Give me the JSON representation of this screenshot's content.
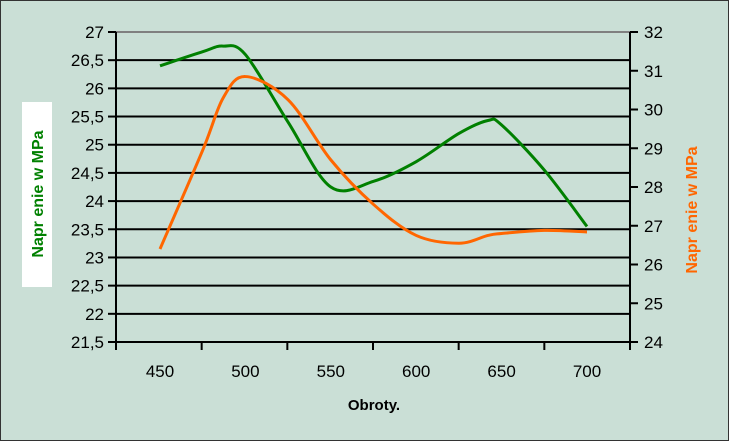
{
  "chart_data": {
    "type": "line",
    "xlabel": "Obroty.",
    "ylabel_left": "Napr   enie w MPa",
    "ylabel_right": "Napr   enie w MPa",
    "x_ticks": [
      "450",
      "500",
      "550",
      "600",
      "650",
      "700"
    ],
    "xlim": [
      425,
      725
    ],
    "y_left_ticks": [
      "27",
      "26,5",
      "26",
      "25,5",
      "25",
      "24,5",
      "24",
      "23,5",
      "23",
      "22,5",
      "22",
      "21,5"
    ],
    "ylim_left": [
      21.5,
      27
    ],
    "y_right_ticks": [
      "32",
      "31",
      "30",
      "29",
      "28",
      "27",
      "26",
      "25",
      "24"
    ],
    "ylim_right": [
      24,
      32
    ],
    "grid": true,
    "colors": {
      "left_series": "#008000",
      "right_series": "#ff6600",
      "background": "#cadfd6"
    },
    "x": [
      450,
      475,
      487,
      500,
      525,
      550,
      575,
      600,
      625,
      642,
      650,
      675,
      700
    ],
    "series": [
      {
        "axis": "left",
        "values": [
          26.4,
          26.65,
          26.75,
          26.6,
          25.4,
          24.25,
          24.35,
          24.7,
          25.2,
          25.43,
          25.35,
          24.55,
          23.55
        ]
      },
      {
        "axis": "right",
        "values": [
          26.4,
          28.95,
          30.3,
          30.85,
          30.25,
          28.7,
          27.55,
          26.75,
          26.55,
          26.75,
          26.8,
          26.88,
          26.84
        ]
      }
    ]
  }
}
